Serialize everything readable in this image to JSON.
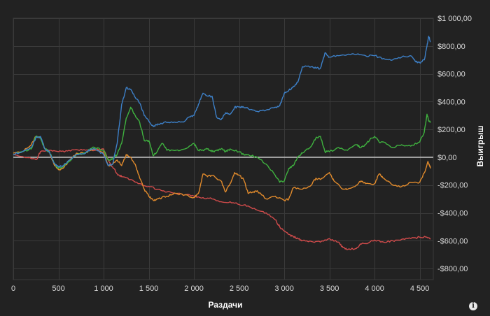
{
  "chart_data": {
    "type": "line",
    "xlabel": "Раздачи",
    "ylabel": "Выигрыш",
    "xlim": [
      0,
      4650
    ],
    "ylim": [
      -880,
      1000
    ],
    "x_ticks": [
      {
        "value": 0,
        "label": "0"
      },
      {
        "value": 500,
        "label": "500"
      },
      {
        "value": 1000,
        "label": "1 000"
      },
      {
        "value": 1500,
        "label": "1 500"
      },
      {
        "value": 2000,
        "label": "2 000"
      },
      {
        "value": 2500,
        "label": "2 500"
      },
      {
        "value": 3000,
        "label": "3 000"
      },
      {
        "value": 3500,
        "label": "3 500"
      },
      {
        "value": 4000,
        "label": "4 000"
      },
      {
        "value": 4500,
        "label": "4 500"
      }
    ],
    "y_ticks": [
      {
        "value": 1000,
        "label": "$1 000,00"
      },
      {
        "value": 800,
        "label": "$800,00"
      },
      {
        "value": 600,
        "label": "$600,00"
      },
      {
        "value": 400,
        "label": "$400,00"
      },
      {
        "value": 200,
        "label": "$200,00"
      },
      {
        "value": 0,
        "label": "$0,00"
      },
      {
        "value": -200,
        "label": "-$200,00"
      },
      {
        "value": -400,
        "label": "-$400,00"
      },
      {
        "value": -600,
        "label": "-$600,00"
      },
      {
        "value": -800,
        "label": "-$800,00"
      }
    ],
    "grid": true,
    "zero_line_color": "#ffffff",
    "series": [
      {
        "color": "#d14b4b",
        "points": [
          [
            0,
            20
          ],
          [
            100,
            5
          ],
          [
            200,
            -10
          ],
          [
            260,
            -15
          ],
          [
            300,
            40
          ],
          [
            400,
            50
          ],
          [
            500,
            40
          ],
          [
            600,
            45
          ],
          [
            700,
            55
          ],
          [
            800,
            50
          ],
          [
            900,
            50
          ],
          [
            1000,
            60
          ],
          [
            1050,
            -20
          ],
          [
            1100,
            -70
          ],
          [
            1150,
            -120
          ],
          [
            1200,
            -140
          ],
          [
            1300,
            -160
          ],
          [
            1400,
            -190
          ],
          [
            1500,
            -210
          ],
          [
            1600,
            -230
          ],
          [
            1700,
            -250
          ],
          [
            1800,
            -260
          ],
          [
            1900,
            -270
          ],
          [
            2000,
            -280
          ],
          [
            2100,
            -290
          ],
          [
            2200,
            -300
          ],
          [
            2300,
            -320
          ],
          [
            2400,
            -320
          ],
          [
            2500,
            -340
          ],
          [
            2600,
            -350
          ],
          [
            2700,
            -380
          ],
          [
            2800,
            -400
          ],
          [
            2900,
            -450
          ],
          [
            2950,
            -500
          ],
          [
            3000,
            -530
          ],
          [
            3050,
            -555
          ],
          [
            3100,
            -570
          ],
          [
            3150,
            -585
          ],
          [
            3200,
            -600
          ],
          [
            3300,
            -605
          ],
          [
            3400,
            -610
          ],
          [
            3500,
            -585
          ],
          [
            3600,
            -610
          ],
          [
            3650,
            -650
          ],
          [
            3700,
            -665
          ],
          [
            3800,
            -655
          ],
          [
            3850,
            -625
          ],
          [
            3900,
            -620
          ],
          [
            4000,
            -595
          ],
          [
            4100,
            -610
          ],
          [
            4200,
            -600
          ],
          [
            4300,
            -590
          ],
          [
            4400,
            -585
          ],
          [
            4500,
            -575
          ],
          [
            4580,
            -575
          ],
          [
            4620,
            -585
          ]
        ]
      },
      {
        "color": "#e08a2c",
        "points": [
          [
            0,
            30
          ],
          [
            100,
            40
          ],
          [
            200,
            90
          ],
          [
            250,
            150
          ],
          [
            300,
            145
          ],
          [
            350,
            60
          ],
          [
            400,
            40
          ],
          [
            450,
            -50
          ],
          [
            500,
            -90
          ],
          [
            550,
            -80
          ],
          [
            600,
            -40
          ],
          [
            700,
            30
          ],
          [
            800,
            30
          ],
          [
            850,
            55
          ],
          [
            900,
            55
          ],
          [
            1000,
            40
          ],
          [
            1050,
            -60
          ],
          [
            1100,
            -50
          ],
          [
            1150,
            -20
          ],
          [
            1200,
            -60
          ],
          [
            1250,
            20
          ],
          [
            1300,
            0
          ],
          [
            1350,
            -50
          ],
          [
            1400,
            -150
          ],
          [
            1450,
            -230
          ],
          [
            1500,
            -280
          ],
          [
            1550,
            -310
          ],
          [
            1600,
            -300
          ],
          [
            1700,
            -280
          ],
          [
            1800,
            -260
          ],
          [
            1900,
            -270
          ],
          [
            2000,
            -290
          ],
          [
            2050,
            -260
          ],
          [
            2100,
            -120
          ],
          [
            2150,
            -140
          ],
          [
            2200,
            -130
          ],
          [
            2300,
            -170
          ],
          [
            2350,
            -250
          ],
          [
            2400,
            -190
          ],
          [
            2450,
            -110
          ],
          [
            2500,
            -130
          ],
          [
            2550,
            -160
          ],
          [
            2600,
            -260
          ],
          [
            2650,
            -250
          ],
          [
            2700,
            -240
          ],
          [
            2800,
            -300
          ],
          [
            2900,
            -280
          ],
          [
            3000,
            -310
          ],
          [
            3050,
            -300
          ],
          [
            3100,
            -220
          ],
          [
            3200,
            -230
          ],
          [
            3300,
            -200
          ],
          [
            3350,
            -150
          ],
          [
            3400,
            -160
          ],
          [
            3500,
            -110
          ],
          [
            3550,
            -170
          ],
          [
            3650,
            -230
          ],
          [
            3700,
            -230
          ],
          [
            3800,
            -200
          ],
          [
            3850,
            -170
          ],
          [
            3900,
            -190
          ],
          [
            4000,
            -190
          ],
          [
            4050,
            -120
          ],
          [
            4100,
            -150
          ],
          [
            4200,
            -200
          ],
          [
            4300,
            -210
          ],
          [
            4400,
            -180
          ],
          [
            4500,
            -180
          ],
          [
            4560,
            -100
          ],
          [
            4590,
            -30
          ],
          [
            4610,
            -60
          ],
          [
            4620,
            -80
          ]
        ]
      },
      {
        "color": "#3fb23f",
        "points": [
          [
            0,
            20
          ],
          [
            100,
            40
          ],
          [
            200,
            60
          ],
          [
            250,
            150
          ],
          [
            300,
            140
          ],
          [
            350,
            60
          ],
          [
            400,
            40
          ],
          [
            450,
            -40
          ],
          [
            500,
            -80
          ],
          [
            550,
            -70
          ],
          [
            600,
            -40
          ],
          [
            700,
            20
          ],
          [
            800,
            30
          ],
          [
            850,
            60
          ],
          [
            900,
            70
          ],
          [
            1000,
            50
          ],
          [
            1050,
            -20
          ],
          [
            1100,
            -10
          ],
          [
            1150,
            20
          ],
          [
            1200,
            100
          ],
          [
            1250,
            280
          ],
          [
            1300,
            360
          ],
          [
            1350,
            300
          ],
          [
            1400,
            250
          ],
          [
            1450,
            120
          ],
          [
            1500,
            120
          ],
          [
            1550,
            10
          ],
          [
            1600,
            50
          ],
          [
            1650,
            100
          ],
          [
            1700,
            50
          ],
          [
            1800,
            50
          ],
          [
            1900,
            60
          ],
          [
            2000,
            100
          ],
          [
            2050,
            50
          ],
          [
            2100,
            50
          ],
          [
            2150,
            60
          ],
          [
            2200,
            40
          ],
          [
            2250,
            50
          ],
          [
            2300,
            60
          ],
          [
            2350,
            40
          ],
          [
            2400,
            60
          ],
          [
            2500,
            40
          ],
          [
            2550,
            20
          ],
          [
            2600,
            20
          ],
          [
            2700,
            0
          ],
          [
            2800,
            -50
          ],
          [
            2900,
            -130
          ],
          [
            2950,
            -180
          ],
          [
            3000,
            -170
          ],
          [
            3050,
            -80
          ],
          [
            3100,
            -60
          ],
          [
            3150,
            0
          ],
          [
            3200,
            30
          ],
          [
            3300,
            80
          ],
          [
            3350,
            140
          ],
          [
            3400,
            150
          ],
          [
            3450,
            40
          ],
          [
            3500,
            40
          ],
          [
            3600,
            70
          ],
          [
            3700,
            50
          ],
          [
            3800,
            90
          ],
          [
            3850,
            70
          ],
          [
            3900,
            90
          ],
          [
            3950,
            130
          ],
          [
            4000,
            150
          ],
          [
            4050,
            110
          ],
          [
            4100,
            110
          ],
          [
            4200,
            70
          ],
          [
            4300,
            90
          ],
          [
            4400,
            80
          ],
          [
            4500,
            110
          ],
          [
            4550,
            180
          ],
          [
            4580,
            310
          ],
          [
            4600,
            260
          ],
          [
            4620,
            250
          ]
        ]
      },
      {
        "color": "#3d80c8",
        "points": [
          [
            0,
            20
          ],
          [
            100,
            40
          ],
          [
            200,
            70
          ],
          [
            250,
            140
          ],
          [
            300,
            150
          ],
          [
            350,
            60
          ],
          [
            400,
            40
          ],
          [
            450,
            -40
          ],
          [
            500,
            -70
          ],
          [
            550,
            -60
          ],
          [
            600,
            -30
          ],
          [
            700,
            20
          ],
          [
            800,
            30
          ],
          [
            850,
            55
          ],
          [
            900,
            60
          ],
          [
            1000,
            20
          ],
          [
            1050,
            -60
          ],
          [
            1100,
            -50
          ],
          [
            1150,
            100
          ],
          [
            1200,
            380
          ],
          [
            1250,
            500
          ],
          [
            1300,
            490
          ],
          [
            1350,
            430
          ],
          [
            1400,
            390
          ],
          [
            1450,
            300
          ],
          [
            1500,
            260
          ],
          [
            1550,
            220
          ],
          [
            1600,
            240
          ],
          [
            1700,
            250
          ],
          [
            1800,
            250
          ],
          [
            1900,
            260
          ],
          [
            1950,
            290
          ],
          [
            2000,
            300
          ],
          [
            2050,
            380
          ],
          [
            2100,
            460
          ],
          [
            2150,
            440
          ],
          [
            2200,
            440
          ],
          [
            2250,
            290
          ],
          [
            2300,
            270
          ],
          [
            2350,
            320
          ],
          [
            2400,
            310
          ],
          [
            2450,
            360
          ],
          [
            2500,
            360
          ],
          [
            2550,
            360
          ],
          [
            2600,
            350
          ],
          [
            2700,
            330
          ],
          [
            2800,
            340
          ],
          [
            2900,
            360
          ],
          [
            2950,
            370
          ],
          [
            3000,
            460
          ],
          [
            3050,
            480
          ],
          [
            3100,
            510
          ],
          [
            3150,
            540
          ],
          [
            3200,
            650
          ],
          [
            3300,
            650
          ],
          [
            3350,
            640
          ],
          [
            3400,
            640
          ],
          [
            3450,
            750
          ],
          [
            3500,
            720
          ],
          [
            3600,
            730
          ],
          [
            3700,
            740
          ],
          [
            3800,
            740
          ],
          [
            3900,
            730
          ],
          [
            4000,
            730
          ],
          [
            4100,
            710
          ],
          [
            4200,
            700
          ],
          [
            4300,
            720
          ],
          [
            4400,
            730
          ],
          [
            4450,
            690
          ],
          [
            4500,
            680
          ],
          [
            4550,
            700
          ],
          [
            4580,
            800
          ],
          [
            4600,
            870
          ],
          [
            4620,
            830
          ]
        ]
      }
    ]
  },
  "info_icon": "info-icon"
}
